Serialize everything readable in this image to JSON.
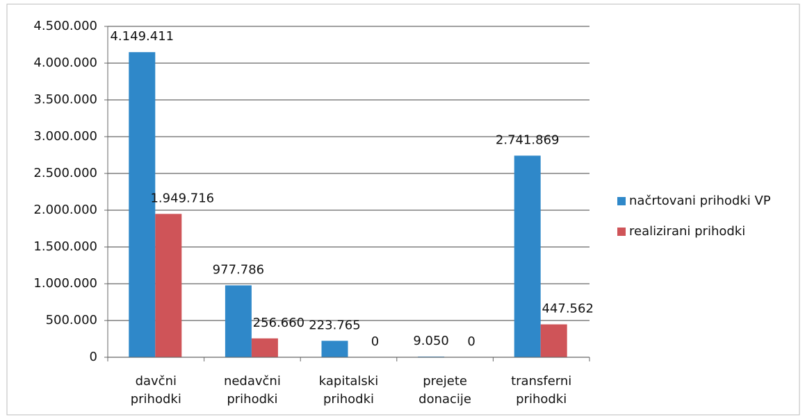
{
  "chart_data": {
    "type": "bar",
    "categories": [
      "davčni prihodki",
      "nedavčni prihodki",
      "kapitalski prihodki",
      "prejete donacije",
      "transferni prihodki"
    ],
    "series": [
      {
        "name": "načrtovani prihodki VP",
        "color": "#2f88c9",
        "values": [
          4149411,
          977786,
          223765,
          9050,
          2741869
        ],
        "value_labels": [
          "4.149.411",
          "977.786",
          "223.765",
          "9.050",
          "2.741.869"
        ]
      },
      {
        "name": "realizirani prihodki",
        "color": "#cf5458",
        "values": [
          1949716,
          256660,
          0,
          0,
          447562
        ],
        "value_labels": [
          "1.949.716",
          "256.660",
          "0",
          "0",
          "447.562"
        ]
      }
    ],
    "ylim": [
      0,
      4500000
    ],
    "yticks": [
      0,
      {
        "value": 500000,
        "label": "500.000"
      },
      {
        "value": 1000000,
        "label": "1.000.000"
      },
      {
        "value": 1500000,
        "label": "1.500.000"
      },
      {
        "value": 2000000,
        "label": "2.000.000"
      },
      {
        "value": 2500000,
        "label": "2.500.000"
      },
      {
        "value": 3000000,
        "label": "3.000.000"
      },
      {
        "value": 3500000,
        "label": "3.500.000"
      },
      {
        "value": 4000000,
        "label": "4.000.000"
      },
      {
        "value": 4500000,
        "label": "4.500.000"
      }
    ],
    "grid": true,
    "legend": "right"
  }
}
